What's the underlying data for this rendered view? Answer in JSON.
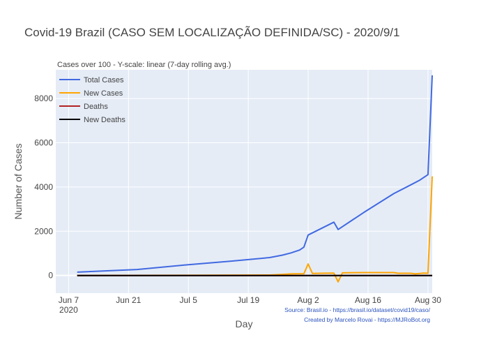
{
  "chart_data": {
    "type": "line",
    "title": "Covid-19 Brazil (CASO SEM LOCALIZAÇÃO DEFINIDA/SC) - 2020/9/1",
    "subtitle": "Cases over 100 - Y-scale: linear (7-day rolling avg.)",
    "xlabel": "Day",
    "ylabel": "Number of Cases",
    "xlim": [
      "2020-06-04",
      "2020-08-31"
    ],
    "ylim": [
      -800,
      9300
    ],
    "x_ticks": [
      {
        "date": "2020-06-07",
        "label": "Jun 7",
        "sublabel": "2020"
      },
      {
        "date": "2020-06-21",
        "label": "Jun 21"
      },
      {
        "date": "2020-07-05",
        "label": "Jul 5"
      },
      {
        "date": "2020-07-19",
        "label": "Jul 19"
      },
      {
        "date": "2020-08-02",
        "label": "Aug 2"
      },
      {
        "date": "2020-08-16",
        "label": "Aug 16"
      },
      {
        "date": "2020-08-30",
        "label": "Aug 30"
      }
    ],
    "y_ticks": [
      0,
      2000,
      4000,
      6000,
      8000
    ],
    "grid": true,
    "legend_position": "top-left",
    "series": [
      {
        "name": "Total Cases",
        "color": "#4169e1",
        "points": [
          [
            "2020-06-09",
            150
          ],
          [
            "2020-06-23",
            270
          ],
          [
            "2020-07-04",
            470
          ],
          [
            "2020-07-15",
            650
          ],
          [
            "2020-07-24",
            810
          ],
          [
            "2020-07-27",
            920
          ],
          [
            "2020-07-29",
            1020
          ],
          [
            "2020-07-31",
            1150
          ],
          [
            "2020-08-01",
            1280
          ],
          [
            "2020-08-02",
            1830
          ],
          [
            "2020-08-08",
            2410
          ],
          [
            "2020-08-09",
            2080
          ],
          [
            "2020-08-15",
            2850
          ],
          [
            "2020-08-22",
            3700
          ],
          [
            "2020-08-26",
            4100
          ],
          [
            "2020-08-28",
            4300
          ],
          [
            "2020-08-30",
            4560
          ],
          [
            "2020-08-31",
            9050
          ]
        ]
      },
      {
        "name": "New Cases",
        "color": "#ffa500",
        "points": [
          [
            "2020-06-09",
            0
          ],
          [
            "2020-07-24",
            20
          ],
          [
            "2020-07-27",
            50
          ],
          [
            "2020-07-29",
            70
          ],
          [
            "2020-08-01",
            80
          ],
          [
            "2020-08-02",
            520
          ],
          [
            "2020-08-03",
            90
          ],
          [
            "2020-08-05",
            100
          ],
          [
            "2020-08-08",
            110
          ],
          [
            "2020-08-09",
            -290
          ],
          [
            "2020-08-10",
            120
          ],
          [
            "2020-08-15",
            130
          ],
          [
            "2020-08-22",
            130
          ],
          [
            "2020-08-23",
            100
          ],
          [
            "2020-08-26",
            100
          ],
          [
            "2020-08-27",
            70
          ],
          [
            "2020-08-29",
            110
          ],
          [
            "2020-08-30",
            100
          ],
          [
            "2020-08-31",
            4480
          ]
        ]
      },
      {
        "name": "Deaths",
        "color": "#b22222",
        "points": [
          [
            "2020-06-09",
            0
          ],
          [
            "2020-08-31",
            0
          ]
        ]
      },
      {
        "name": "New Deaths",
        "color": "#000000",
        "points": [
          [
            "2020-06-09",
            0
          ],
          [
            "2020-08-31",
            0
          ]
        ]
      }
    ],
    "annotations": [
      "Source: Brasil.io - https://brasil.io/dataset/covid19/caso/",
      "Created by Marcelo Rovai - https://MJRoBot.org"
    ]
  }
}
